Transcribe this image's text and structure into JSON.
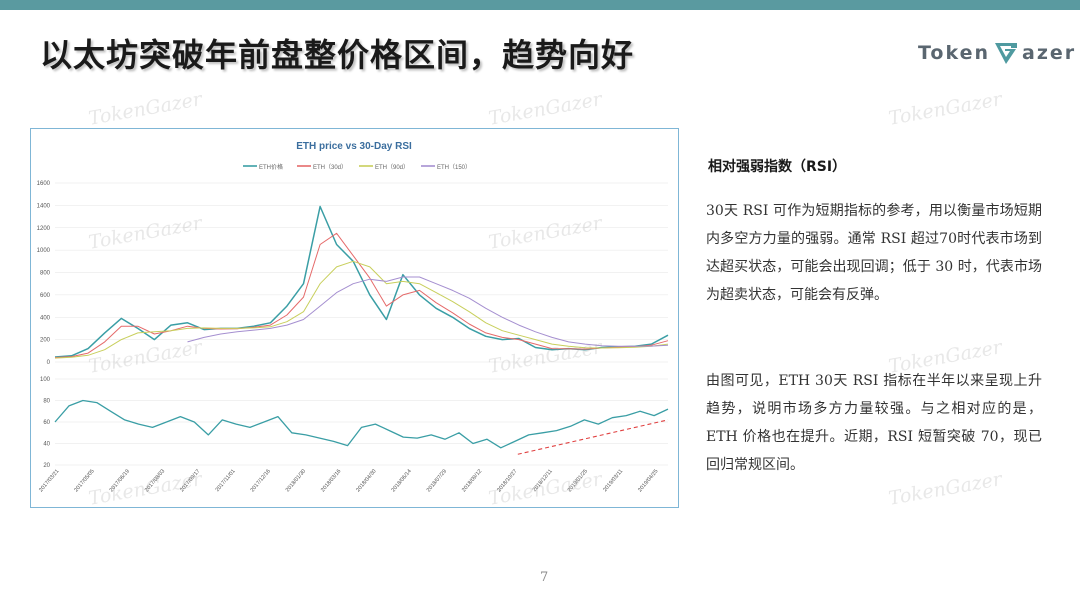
{
  "slide": {
    "title": "以太坊突破年前盘整价格区间，趋势向好",
    "page_number": "7",
    "logo_prefix": "Token",
    "logo_suffix": "azer",
    "watermark": "TokenGazer",
    "accent_color": "#5a9aa0"
  },
  "side": {
    "heading": "相对强弱指数（RSI）",
    "paragraph1": "30天 RSI 可作为短期指标的参考，用以衡量市场短期内多空方力量的强弱。通常 RSI 超过70时代表市场到达超买状态，可能会出现回调；低于 30 时，代表市场为超卖状态，可能会有反弹。",
    "paragraph2": "由图可见，ETH 30天 RSI 指标在半年以来呈现上升趋势，说明市场多方力量较强。与之相对应的是，ETH 价格也在提升。近期，RSI 短暂突破 70，现已回归常规区间。"
  },
  "chart_data": {
    "type": "line",
    "title": "ETH price vs 30-Day RSI",
    "x_labels": [
      "2017/03/21",
      "2017/05/05",
      "2017/06/19",
      "2017/08/03",
      "2017/09/17",
      "2017/11/01",
      "2017/12/16",
      "2018/01/30",
      "2018/03/16",
      "2018/04/30",
      "2018/06/14",
      "2018/07/29",
      "2018/09/12",
      "2018/10/27",
      "2018/12/11",
      "2019/01/25",
      "2019/03/11",
      "2019/04/25"
    ],
    "price_panel": {
      "ylim": [
        0,
        1600
      ],
      "y_ticks": [
        "0",
        "200",
        "400",
        "600",
        "800",
        "1000",
        "1200",
        "1400",
        "1600"
      ],
      "series": [
        {
          "name": "ETH价格",
          "color": "#3a9ea5",
          "values": [
            45,
            55,
            120,
            260,
            390,
            300,
            200,
            330,
            350,
            290,
            300,
            300,
            320,
            350,
            500,
            700,
            1390,
            1050,
            900,
            600,
            380,
            780,
            600,
            480,
            400,
            300,
            230,
            200,
            210,
            130,
            110,
            120,
            110,
            130,
            135,
            140,
            160,
            240
          ]
        },
        {
          "name": "ETH（30d）",
          "color": "#e56a6a",
          "values": [
            40,
            48,
            80,
            180,
            320,
            320,
            250,
            280,
            320,
            300,
            295,
            298,
            310,
            330,
            420,
            580,
            1050,
            1150,
            950,
            750,
            500,
            600,
            640,
            530,
            440,
            340,
            260,
            220,
            200,
            160,
            120,
            118,
            115,
            125,
            132,
            138,
            150,
            190
          ]
        },
        {
          "name": "ETH（90d）",
          "color": "#c8cf5c",
          "values": [
            35,
            42,
            60,
            110,
            200,
            260,
            270,
            280,
            300,
            305,
            300,
            300,
            305,
            315,
            360,
            450,
            700,
            850,
            900,
            850,
            700,
            720,
            700,
            620,
            540,
            450,
            350,
            280,
            240,
            200,
            160,
            140,
            128,
            125,
            128,
            132,
            140,
            160
          ]
        },
        {
          "name": "ETH（150）",
          "color": "#a58fd0",
          "values": [
            null,
            null,
            null,
            null,
            null,
            null,
            null,
            null,
            180,
            220,
            250,
            270,
            285,
            300,
            330,
            380,
            500,
            620,
            700,
            740,
            720,
            760,
            760,
            700,
            640,
            570,
            480,
            400,
            330,
            270,
            220,
            180,
            160,
            145,
            140,
            140,
            142,
            150
          ]
        }
      ]
    },
    "rsi_panel": {
      "ylim": [
        20,
        100
      ],
      "y_ticks": [
        "20",
        "40",
        "60",
        "80",
        "100"
      ],
      "series": [
        {
          "name": "RSI",
          "color": "#3a9ea5",
          "values": [
            60,
            75,
            80,
            78,
            70,
            62,
            58,
            55,
            60,
            65,
            60,
            48,
            62,
            58,
            55,
            60,
            65,
            50,
            48,
            45,
            42,
            38,
            55,
            58,
            52,
            46,
            45,
            48,
            44,
            50,
            40,
            44,
            36,
            42,
            48,
            50,
            52,
            56,
            62,
            58,
            64,
            66,
            70,
            66,
            72
          ]
        }
      ],
      "trendline": {
        "color": "#e04040",
        "from": [
          0.755,
          30
        ],
        "to": [
          1.0,
          62
        ]
      }
    }
  }
}
